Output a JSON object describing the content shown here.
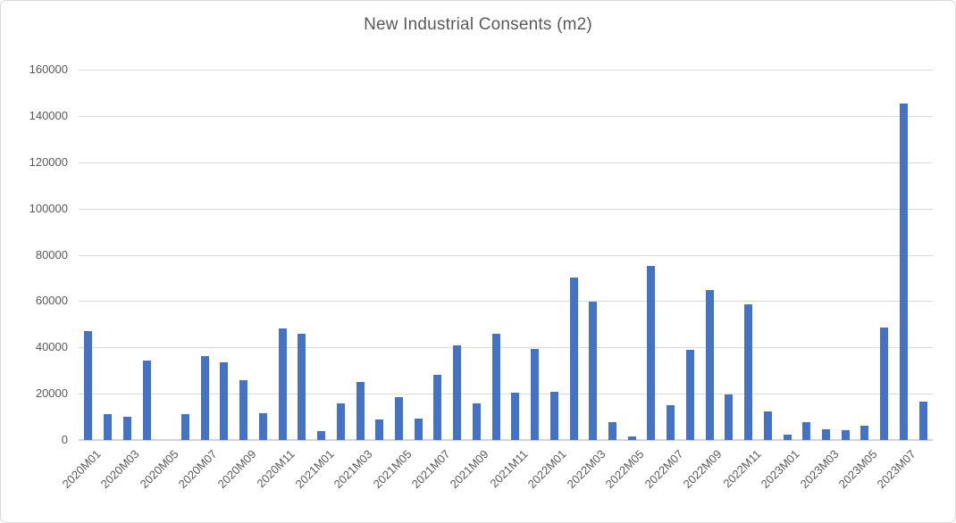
{
  "chart_data": {
    "type": "bar",
    "title": "New Industrial Consents (m2)",
    "categories": [
      "2020M01",
      "2020M02",
      "2020M03",
      "2020M04",
      "2020M05",
      "2020M06",
      "2020M07",
      "2020M08",
      "2020M09",
      "2020M10",
      "2020M11",
      "2020M12",
      "2021M01",
      "2021M02",
      "2021M03",
      "2021M04",
      "2021M05",
      "2021M06",
      "2021M07",
      "2021M08",
      "2021M09",
      "2021M10",
      "2021M11",
      "2021M12",
      "2022M01",
      "2022M02",
      "2022M03",
      "2022M04",
      "2022M05",
      "2022M06",
      "2022M07",
      "2022M08",
      "2022M09",
      "2022M10",
      "2022M11",
      "2022M12",
      "2023M01",
      "2023M02",
      "2023M03",
      "2023M04",
      "2023M05",
      "2023M06",
      "2023M07",
      "2023M08"
    ],
    "values": [
      47000,
      11200,
      9900,
      34300,
      0,
      11200,
      36300,
      33400,
      25700,
      11600,
      48200,
      45700,
      3900,
      16000,
      25000,
      9000,
      18600,
      9400,
      28300,
      40800,
      15700,
      45800,
      20600,
      39200,
      20700,
      70200,
      59900,
      7800,
      1700,
      75000,
      15000,
      38800,
      64700,
      19800,
      58600,
      12500,
      2200,
      7700,
      4800,
      4300,
      6100,
      48600,
      145300,
      16400
    ],
    "xlabel": "",
    "ylabel": "",
    "ylim": [
      0,
      160000
    ],
    "y_ticks": [
      0,
      20000,
      40000,
      60000,
      80000,
      100000,
      120000,
      140000,
      160000
    ],
    "x_label_every": 2,
    "grid": true,
    "legend": "none",
    "colors": {
      "bar": "#4472C4",
      "gridline": "#d9d9d9",
      "axis_line": "#d3d3d3",
      "text": "#595959",
      "frame_border": "#d8d8d8"
    }
  }
}
